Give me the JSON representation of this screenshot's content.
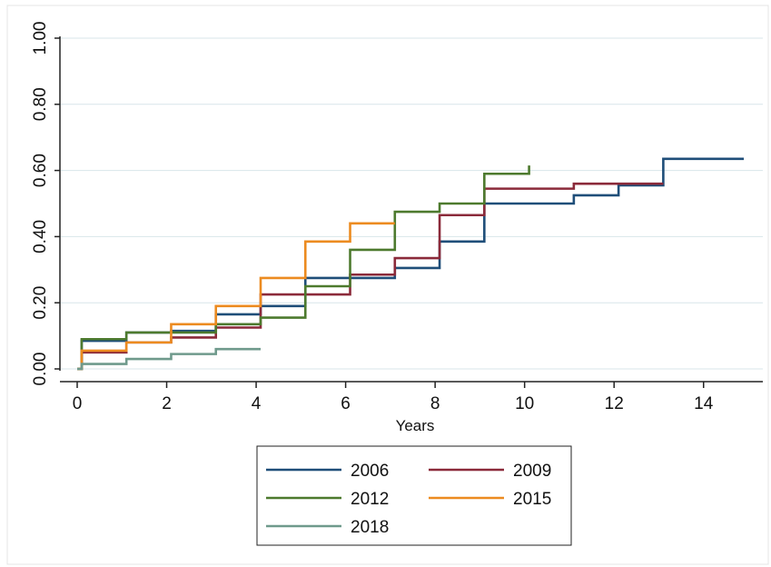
{
  "chart_data": {
    "type": "line",
    "step": true,
    "title": "",
    "xlabel": "Years",
    "ylabel": "",
    "xlim": [
      0,
      15
    ],
    "ylim": [
      0,
      1
    ],
    "x_ticks": [
      0,
      2,
      4,
      6,
      8,
      10,
      12,
      14
    ],
    "x_tick_labels": [
      "0",
      "2",
      "4",
      "6",
      "8",
      "10",
      "12",
      "14"
    ],
    "y_ticks": [
      0,
      0.2,
      0.4,
      0.6,
      0.8,
      1.0
    ],
    "y_tick_labels": [
      "0.00",
      "0.20",
      "0.40",
      "0.60",
      "0.80",
      "1.00"
    ],
    "grid": "horizontal",
    "legend_position": "bottom",
    "series": [
      {
        "name": "2006",
        "color": "#1f4e79",
        "x": [
          0,
          0.1,
          1.1,
          2.1,
          3.1,
          4.1,
          5.1,
          7.1,
          8.1,
          9.1,
          11.1,
          12.1,
          13.1,
          14.9
        ],
        "y": [
          0,
          0.085,
          0.11,
          0.115,
          0.165,
          0.19,
          0.275,
          0.305,
          0.385,
          0.5,
          0.525,
          0.555,
          0.635,
          0.635
        ]
      },
      {
        "name": "2009",
        "color": "#8b2a3a",
        "x": [
          0,
          0.1,
          1.1,
          2.1,
          3.1,
          4.1,
          6.1,
          7.1,
          8.1,
          9.1,
          11.1,
          13.1
        ],
        "y": [
          0,
          0.05,
          0.08,
          0.095,
          0.125,
          0.225,
          0.285,
          0.335,
          0.465,
          0.545,
          0.56,
          0.56
        ]
      },
      {
        "name": "2012",
        "color": "#4d7a2e",
        "x": [
          0,
          0.1,
          1.1,
          3.1,
          4.1,
          5.1,
          6.1,
          7.1,
          8.1,
          9.1,
          10.1
        ],
        "y": [
          0,
          0.09,
          0.11,
          0.135,
          0.155,
          0.25,
          0.36,
          0.475,
          0.5,
          0.59,
          0.615
        ]
      },
      {
        "name": "2015",
        "color": "#ec8b20",
        "x": [
          0,
          0.1,
          1.1,
          2.1,
          3.1,
          4.1,
          5.1,
          6.1,
          7.1
        ],
        "y": [
          0,
          0.055,
          0.08,
          0.135,
          0.19,
          0.275,
          0.385,
          0.44,
          0.44
        ]
      },
      {
        "name": "2018",
        "color": "#6f9a8c",
        "x": [
          0,
          0.1,
          1.1,
          2.1,
          3.1,
          4.1
        ],
        "y": [
          0,
          0.015,
          0.03,
          0.045,
          0.06,
          0.06
        ]
      }
    ]
  }
}
